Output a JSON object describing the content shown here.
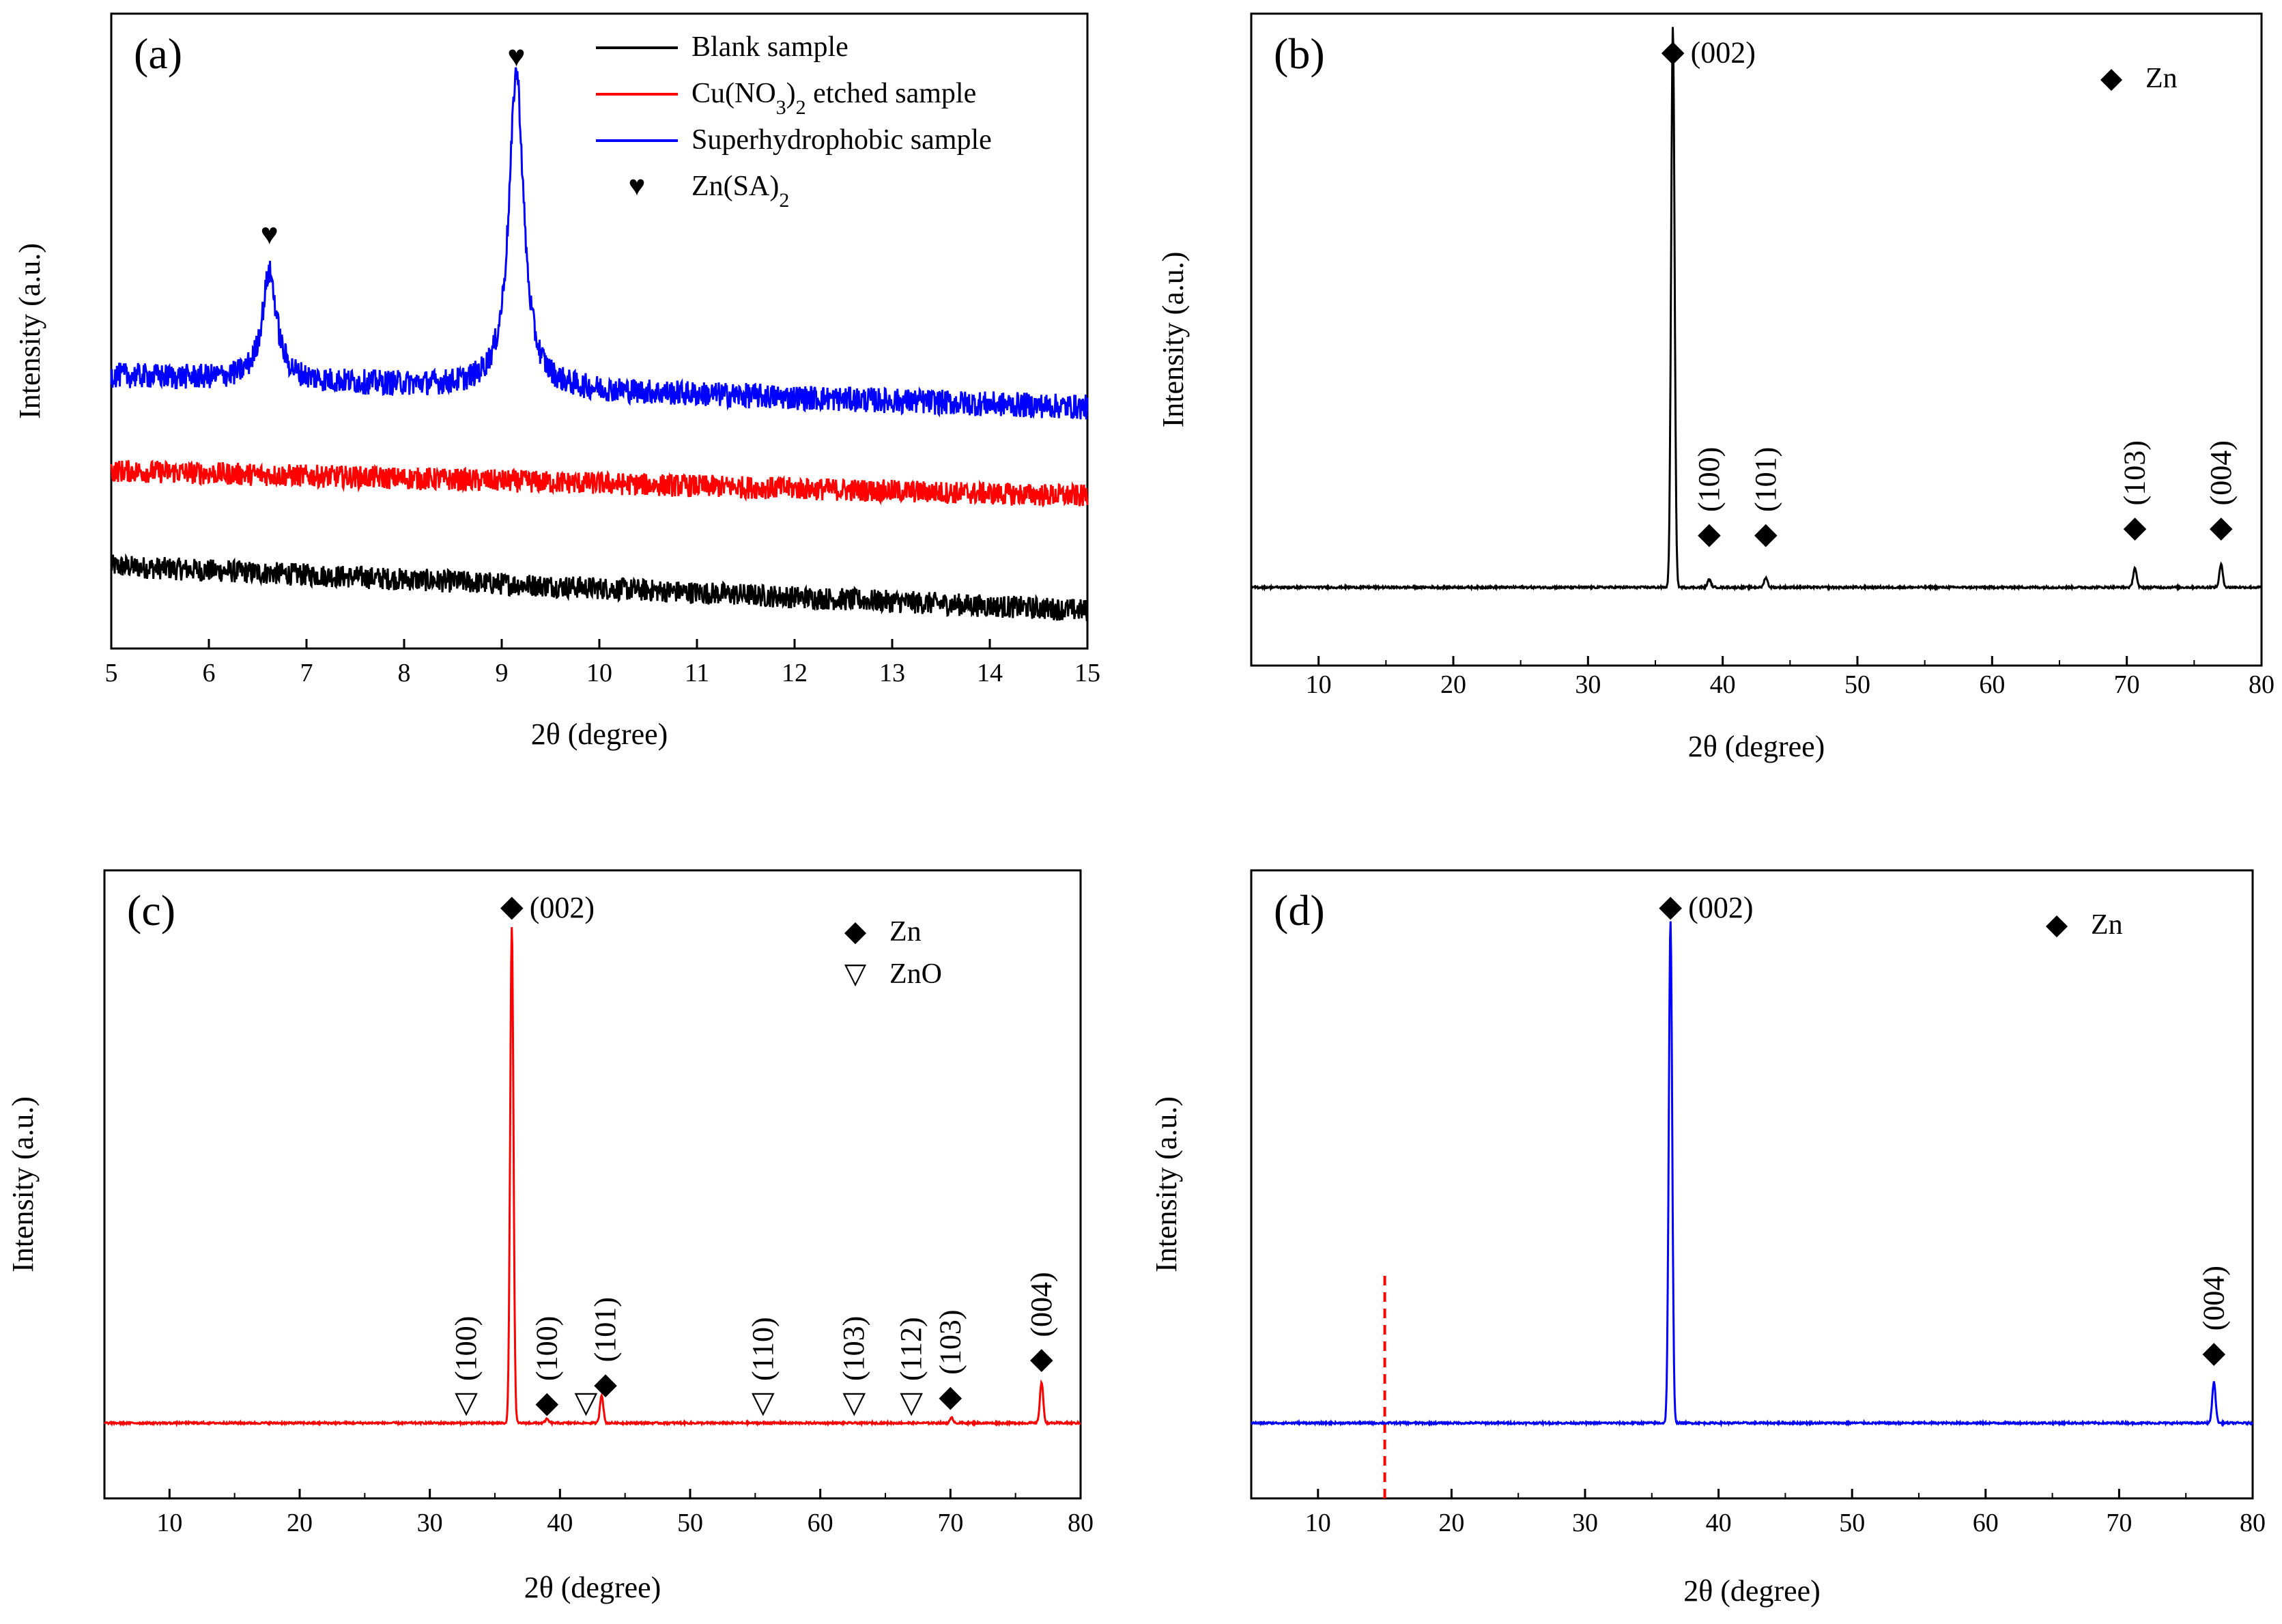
{
  "chart_data": [
    {
      "panel": "(a)",
      "type": "line",
      "xlabel": "2θ (degree)",
      "ylabel": "Intensity (a.u.)",
      "xlim": [
        5,
        15
      ],
      "xticks": [
        5,
        6,
        7,
        8,
        9,
        10,
        11,
        12,
        13,
        14,
        15
      ],
      "legend_position": "top-right",
      "legend": [
        {
          "label": "Blank sample",
          "color": "#000000",
          "kind": "line"
        },
        {
          "label_parts": [
            "Cu(NO",
            "3",
            ")",
            "2",
            " etched sample"
          ],
          "color": "#ff0000",
          "kind": "line"
        },
        {
          "label": "Superhydrophobic sample",
          "color": "#0000ff",
          "kind": "line"
        },
        {
          "label_parts": [
            "Zn(SA)",
            "2"
          ],
          "symbol": "♥",
          "kind": "marker"
        }
      ],
      "series": [
        {
          "name": "Blank sample",
          "color": "#000000",
          "start": 0.13,
          "end": 0.06,
          "noise": 0.018,
          "peaks": []
        },
        {
          "name": "Cu(NO3)2 etched sample",
          "color": "#ff0000",
          "start": 0.28,
          "end": 0.24,
          "noise": 0.018,
          "peaks": []
        },
        {
          "name": "Superhydrophobic sample",
          "color": "#0000ff",
          "start": 0.43,
          "end": 0.38,
          "noise": 0.02,
          "peaks": [
            {
              "x": 6.62,
              "height": 0.17,
              "width": 0.09
            },
            {
              "x": 9.15,
              "height": 0.5,
              "width": 0.09
            }
          ]
        }
      ],
      "markers": [
        {
          "x": 6.62,
          "symbol": "♥",
          "label": "",
          "y_frac": 0.65
        },
        {
          "x": 9.15,
          "symbol": "♥",
          "label": "",
          "y_frac": 0.93
        }
      ]
    },
    {
      "panel": "(b)",
      "type": "line",
      "xlabel": "2θ (degree)",
      "ylabel": "Intensity (a.u.)",
      "xlim": [
        5,
        80
      ],
      "xticks": [
        10,
        20,
        30,
        40,
        50,
        60,
        70,
        80
      ],
      "legend_position": "top-right",
      "legend": [
        {
          "label": "Zn",
          "symbol": "◆",
          "kind": "marker"
        }
      ],
      "series": [
        {
          "name": "Blank sample",
          "color": "#000000",
          "baseline": 0.12,
          "noise": 0.0015,
          "peaks": [
            {
              "x": 36.3,
              "height": 0.86
            },
            {
              "x": 39.0,
              "height": 0.012
            },
            {
              "x": 43.2,
              "height": 0.015
            },
            {
              "x": 70.6,
              "height": 0.03
            },
            {
              "x": 77.0,
              "height": 0.035
            }
          ]
        }
      ],
      "markers": [
        {
          "x": 36.3,
          "symbol": "◆",
          "label": "(002)",
          "orient": "h",
          "y_frac": 0.94
        },
        {
          "x": 39.0,
          "symbol": "◆",
          "label": "(100)",
          "orient": "v",
          "y_frac": 0.2
        },
        {
          "x": 43.2,
          "symbol": "◆",
          "label": "(101)",
          "orient": "v",
          "y_frac": 0.2
        },
        {
          "x": 70.6,
          "symbol": "◆",
          "label": "(103)",
          "orient": "v",
          "y_frac": 0.21
        },
        {
          "x": 77.0,
          "symbol": "◆",
          "label": "(004)",
          "orient": "v",
          "y_frac": 0.21
        }
      ]
    },
    {
      "panel": "(c)",
      "type": "line",
      "xlabel": "2θ (degree)",
      "ylabel": "Intensity (a.u.)",
      "xlim": [
        5,
        80
      ],
      "xticks": [
        10,
        20,
        30,
        40,
        50,
        60,
        70,
        80
      ],
      "legend_position": "top-right",
      "legend": [
        {
          "label": "Zn",
          "symbol": "◆",
          "kind": "marker"
        },
        {
          "label": "ZnO",
          "symbol": "▽",
          "kind": "marker"
        }
      ],
      "series": [
        {
          "name": "Cu(NO3)2 etched sample",
          "color": "#ff0000",
          "baseline": 0.12,
          "noise": 0.0015,
          "peaks": [
            {
              "x": 36.3,
              "height": 0.79
            },
            {
              "x": 39.0,
              "height": 0.006
            },
            {
              "x": 43.2,
              "height": 0.045
            },
            {
              "x": 70.1,
              "height": 0.008
            },
            {
              "x": 77.0,
              "height": 0.065
            }
          ]
        }
      ],
      "markers": [
        {
          "x": 36.3,
          "symbol": "◆",
          "label": "(002)",
          "orient": "h",
          "y_frac": 0.94
        },
        {
          "x": 32.8,
          "symbol": "▽",
          "label": "(100)",
          "orient": "v",
          "y_frac": 0.15
        },
        {
          "x": 39.0,
          "symbol": "◆",
          "label": "(100)",
          "orient": "v",
          "y_frac": 0.15
        },
        {
          "x": 42.0,
          "symbol": "▽",
          "label": "",
          "orient": "v",
          "y_frac": 0.15
        },
        {
          "x": 43.5,
          "symbol": "◆",
          "label": "(101)",
          "orient": "v",
          "y_frac": 0.18
        },
        {
          "x": 55.6,
          "symbol": "▽",
          "label": "(110)",
          "orient": "v",
          "y_frac": 0.15
        },
        {
          "x": 62.6,
          "symbol": "▽",
          "label": "(103)",
          "orient": "v",
          "y_frac": 0.15
        },
        {
          "x": 67.0,
          "symbol": "▽",
          "label": "(112)",
          "orient": "v",
          "y_frac": 0.15
        },
        {
          "x": 70.0,
          "symbol": "◆",
          "label": "(103)",
          "orient": "v",
          "y_frac": 0.16
        },
        {
          "x": 77.0,
          "symbol": "◆",
          "label": "(004)",
          "orient": "v",
          "y_frac": 0.22
        }
      ]
    },
    {
      "panel": "(d)",
      "type": "line",
      "xlabel": "2θ (degree)",
      "ylabel": "Intensity (a.u.)",
      "xlim": [
        5,
        80
      ],
      "xticks": [
        10,
        20,
        30,
        40,
        50,
        60,
        70,
        80
      ],
      "legend_position": "top-right",
      "legend": [
        {
          "label": "Zn",
          "symbol": "◆",
          "kind": "marker"
        }
      ],
      "vline": {
        "x": 15,
        "color": "#ff0000",
        "style": "dashed"
      },
      "series": [
        {
          "name": "Superhydrophobic sample",
          "color": "#0000ff",
          "baseline": 0.12,
          "noise": 0.0015,
          "peaks": [
            {
              "x": 36.4,
              "height": 0.8
            },
            {
              "x": 77.1,
              "height": 0.065
            }
          ]
        }
      ],
      "markers": [
        {
          "x": 36.4,
          "symbol": "◆",
          "label": "(002)",
          "orient": "h",
          "y_frac": 0.94
        },
        {
          "x": 77.1,
          "symbol": "◆",
          "label": "(004)",
          "orient": "v",
          "y_frac": 0.23
        }
      ]
    }
  ]
}
